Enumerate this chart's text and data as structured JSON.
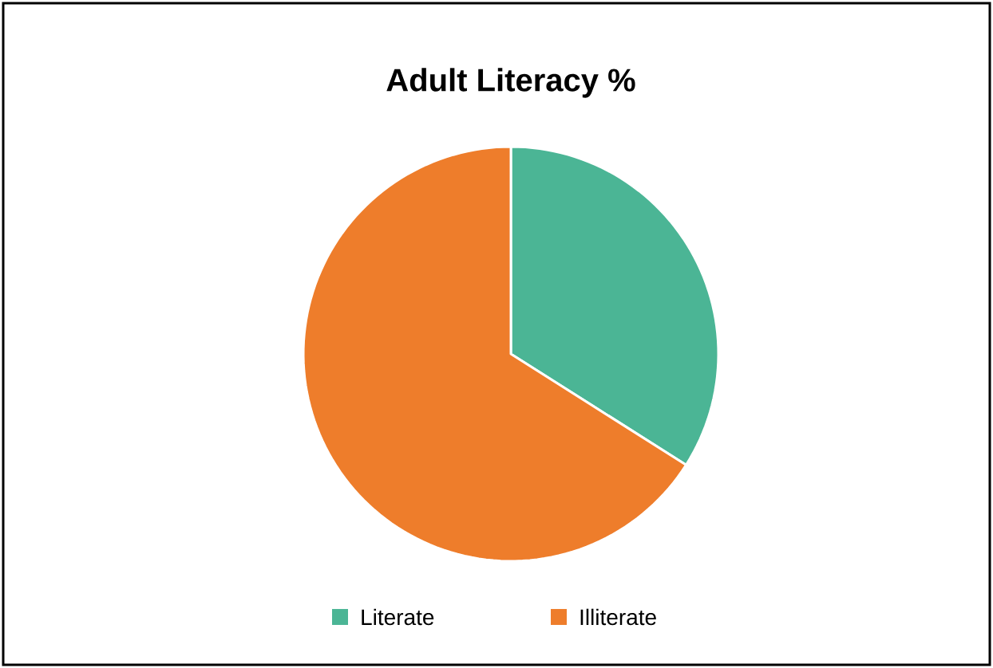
{
  "chart_data": {
    "type": "pie",
    "title": "Adult Literacy %",
    "categories": [
      "Literate",
      "Illiterate"
    ],
    "values": [
      34,
      66
    ],
    "colors": [
      "#4bb595",
      "#ee7d2b"
    ],
    "legend": "bottom"
  }
}
